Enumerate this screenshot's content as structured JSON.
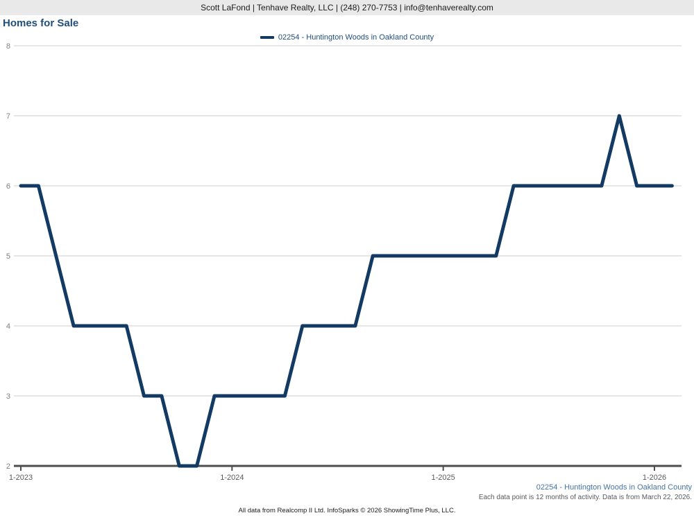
{
  "header": {
    "contact": "Scott LaFond | Tenhave Realty, LLC | (248) 270-7753 | info@tenhaverealty.com"
  },
  "page": {
    "title": "Homes for Sale"
  },
  "legend": {
    "items": [
      {
        "label": "02254 - Huntington Woods in Oakland County",
        "color": "#123a63"
      }
    ]
  },
  "chart_data": {
    "type": "line",
    "title": "Homes for Sale",
    "xlabel": "",
    "ylabel": "",
    "ylim": [
      2,
      8
    ],
    "yticks": [
      2,
      3,
      4,
      5,
      6,
      7,
      8
    ],
    "grid": "horizontal",
    "legend_position": "top-center",
    "x_labels": [
      "1-2023",
      "2-2023",
      "3-2023",
      "4-2023",
      "5-2023",
      "6-2023",
      "7-2023",
      "8-2023",
      "9-2023",
      "10-2023",
      "11-2023",
      "12-2023",
      "1-2024",
      "2-2024",
      "3-2024",
      "4-2024",
      "5-2024",
      "6-2024",
      "7-2024",
      "8-2024",
      "9-2024",
      "10-2024",
      "11-2024",
      "12-2024",
      "1-2025",
      "2-2025",
      "3-2025",
      "4-2025",
      "5-2025",
      "6-2025",
      "7-2025",
      "8-2025",
      "9-2025",
      "10-2025",
      "11-2025",
      "12-2025",
      "1-2026",
      "2-2026"
    ],
    "x_axis_ticks": [
      {
        "label": "1-2023",
        "index": 0
      },
      {
        "label": "1-2024",
        "index": 12
      },
      {
        "label": "1-2025",
        "index": 24
      },
      {
        "label": "1-2026",
        "index": 36
      }
    ],
    "series": [
      {
        "name": "02254 - Huntington Woods in Oakland County",
        "color": "#123a63",
        "values": [
          6,
          6,
          5,
          4,
          4,
          4,
          4,
          3,
          3,
          2,
          2,
          3,
          3,
          3,
          3,
          3,
          4,
          4,
          4,
          4,
          5,
          5,
          5,
          5,
          5,
          5,
          5,
          5,
          6,
          6,
          6,
          6,
          6,
          6,
          7,
          6,
          6,
          6
        ]
      }
    ]
  },
  "annotations": {
    "series_caption": "02254 - Huntington Woods in Oakland County",
    "data_note": "Each data point is 12 months of activity. Data is from March 22, 2026.",
    "footer": "All data from Realcomp II Ltd. InfoSparks © 2026 ShowingTime Plus, LLC."
  },
  "colors": {
    "line": "#123a63",
    "grid": "#cccccc",
    "axis": "#4d4d4d",
    "y_tick_text": "#808080",
    "x_tick_text": "#595959",
    "title_text": "#1f4e79",
    "legend_text": "#1f4c7d",
    "series_caption_text": "#4472a4",
    "note_text": "#595959",
    "header_bg": "#e9e9e9"
  }
}
